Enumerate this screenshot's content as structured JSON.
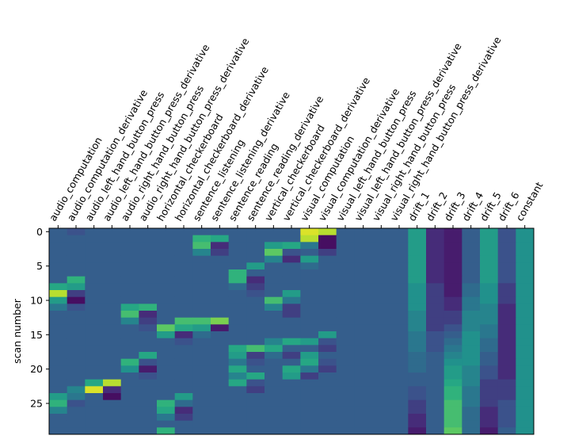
{
  "chart_data": {
    "type": "heatmap",
    "title": "",
    "ylabel": "scan number",
    "xlabel": "",
    "colormap": "viridis",
    "n_rows": 30,
    "columns": [
      "audio_computation",
      "audio_computation_derivative",
      "audio_left_hand_button_press",
      "audio_left_hand_button_press_derivative",
      "audio_right_hand_button_press",
      "audio_right_hand_button_press_derivative",
      "horizontal_checkerboard",
      "horizontal_checkerboard_derivative",
      "sentence_listening",
      "sentence_listening_derivative",
      "sentence_reading",
      "sentence_reading_derivative",
      "vertical_checkerboard",
      "vertical_checkerboard_derivative",
      "visual_computation",
      "visual_computation_derivative",
      "visual_left_hand_button_press",
      "visual_left_hand_button_press_derivative",
      "visual_right_hand_button_press",
      "visual_right_hand_button_press_derivative",
      "drift_1",
      "drift_2",
      "drift_3",
      "drift_4",
      "drift_5",
      "drift_6",
      "constant"
    ],
    "y_ticks": [
      0,
      5,
      10,
      15,
      20,
      25
    ],
    "ylim": [
      29.5,
      -0.5
    ],
    "grid": false,
    "legend": "none",
    "values": [
      [
        0.3,
        0.25,
        0.3,
        0.3,
        0.3,
        0.3,
        0.3,
        0.3,
        0.3,
        0.3,
        0.3,
        0.3,
        0.3,
        0.3,
        0.95,
        0.9,
        0.3,
        0.3,
        0.3,
        0.3,
        0.55,
        0.15,
        0.1,
        0.3,
        0.55,
        0.25,
        0.5
      ],
      [
        0.3,
        0.3,
        0.3,
        0.3,
        0.3,
        0.3,
        0.3,
        0.3,
        0.65,
        0.6,
        0.3,
        0.3,
        0.3,
        0.3,
        0.9,
        0.05,
        0.3,
        0.3,
        0.3,
        0.3,
        0.55,
        0.15,
        0.1,
        0.3,
        0.55,
        0.25,
        0.5
      ],
      [
        0.3,
        0.3,
        0.3,
        0.3,
        0.3,
        0.3,
        0.3,
        0.3,
        0.7,
        0.15,
        0.3,
        0.3,
        0.55,
        0.6,
        0.4,
        0.05,
        0.3,
        0.3,
        0.3,
        0.3,
        0.55,
        0.15,
        0.1,
        0.3,
        0.55,
        0.25,
        0.5
      ],
      [
        0.3,
        0.3,
        0.3,
        0.3,
        0.3,
        0.3,
        0.3,
        0.3,
        0.45,
        0.2,
        0.3,
        0.3,
        0.75,
        0.25,
        0.3,
        0.2,
        0.3,
        0.3,
        0.3,
        0.3,
        0.55,
        0.15,
        0.1,
        0.3,
        0.55,
        0.25,
        0.5
      ],
      [
        0.3,
        0.3,
        0.3,
        0.3,
        0.3,
        0.3,
        0.3,
        0.3,
        0.3,
        0.3,
        0.3,
        0.3,
        0.45,
        0.15,
        0.55,
        0.3,
        0.3,
        0.3,
        0.3,
        0.3,
        0.55,
        0.15,
        0.1,
        0.3,
        0.55,
        0.25,
        0.5
      ],
      [
        0.3,
        0.3,
        0.3,
        0.3,
        0.3,
        0.3,
        0.3,
        0.3,
        0.3,
        0.3,
        0.3,
        0.55,
        0.3,
        0.3,
        0.35,
        0.3,
        0.3,
        0.3,
        0.3,
        0.3,
        0.55,
        0.15,
        0.1,
        0.3,
        0.55,
        0.25,
        0.5
      ],
      [
        0.3,
        0.3,
        0.3,
        0.3,
        0.3,
        0.3,
        0.3,
        0.3,
        0.3,
        0.3,
        0.65,
        0.3,
        0.3,
        0.3,
        0.3,
        0.3,
        0.3,
        0.3,
        0.3,
        0.3,
        0.55,
        0.15,
        0.1,
        0.3,
        0.55,
        0.25,
        0.5
      ],
      [
        0.3,
        0.65,
        0.3,
        0.3,
        0.3,
        0.3,
        0.3,
        0.3,
        0.3,
        0.3,
        0.65,
        0.15,
        0.3,
        0.3,
        0.3,
        0.3,
        0.3,
        0.3,
        0.3,
        0.3,
        0.55,
        0.15,
        0.1,
        0.3,
        0.55,
        0.25,
        0.5
      ],
      [
        0.6,
        0.55,
        0.3,
        0.3,
        0.3,
        0.3,
        0.3,
        0.3,
        0.3,
        0.3,
        0.35,
        0.2,
        0.3,
        0.3,
        0.3,
        0.3,
        0.3,
        0.3,
        0.3,
        0.3,
        0.5,
        0.2,
        0.1,
        0.35,
        0.5,
        0.2,
        0.5
      ],
      [
        0.9,
        0.2,
        0.3,
        0.3,
        0.3,
        0.3,
        0.3,
        0.3,
        0.3,
        0.3,
        0.3,
        0.25,
        0.3,
        0.55,
        0.3,
        0.3,
        0.3,
        0.3,
        0.3,
        0.3,
        0.5,
        0.2,
        0.1,
        0.35,
        0.5,
        0.2,
        0.5
      ],
      [
        0.55,
        0.05,
        0.3,
        0.3,
        0.3,
        0.3,
        0.3,
        0.3,
        0.3,
        0.3,
        0.3,
        0.3,
        0.7,
        0.4,
        0.3,
        0.3,
        0.3,
        0.3,
        0.3,
        0.3,
        0.5,
        0.2,
        0.15,
        0.4,
        0.5,
        0.2,
        0.5
      ],
      [
        0.4,
        0.25,
        0.3,
        0.3,
        0.6,
        0.65,
        0.3,
        0.3,
        0.3,
        0.3,
        0.3,
        0.3,
        0.45,
        0.2,
        0.3,
        0.3,
        0.3,
        0.3,
        0.3,
        0.3,
        0.5,
        0.2,
        0.15,
        0.4,
        0.45,
        0.15,
        0.5
      ],
      [
        0.3,
        0.3,
        0.3,
        0.3,
        0.7,
        0.15,
        0.3,
        0.3,
        0.3,
        0.3,
        0.3,
        0.3,
        0.3,
        0.2,
        0.3,
        0.3,
        0.3,
        0.3,
        0.3,
        0.3,
        0.45,
        0.2,
        0.2,
        0.45,
        0.45,
        0.15,
        0.5
      ],
      [
        0.3,
        0.3,
        0.3,
        0.3,
        0.45,
        0.2,
        0.3,
        0.7,
        0.7,
        0.8,
        0.3,
        0.3,
        0.3,
        0.3,
        0.3,
        0.3,
        0.3,
        0.3,
        0.3,
        0.3,
        0.45,
        0.2,
        0.2,
        0.45,
        0.45,
        0.15,
        0.5
      ],
      [
        0.3,
        0.3,
        0.3,
        0.3,
        0.3,
        0.25,
        0.75,
        0.6,
        0.55,
        0.1,
        0.3,
        0.3,
        0.3,
        0.3,
        0.3,
        0.3,
        0.3,
        0.3,
        0.3,
        0.3,
        0.45,
        0.2,
        0.25,
        0.45,
        0.4,
        0.15,
        0.5
      ],
      [
        0.3,
        0.3,
        0.3,
        0.3,
        0.3,
        0.3,
        0.55,
        0.15,
        0.35,
        0.3,
        0.3,
        0.3,
        0.3,
        0.3,
        0.3,
        0.55,
        0.3,
        0.3,
        0.3,
        0.3,
        0.4,
        0.25,
        0.3,
        0.5,
        0.4,
        0.15,
        0.5
      ],
      [
        0.3,
        0.3,
        0.3,
        0.3,
        0.3,
        0.3,
        0.3,
        0.25,
        0.3,
        0.3,
        0.3,
        0.3,
        0.45,
        0.6,
        0.55,
        0.25,
        0.3,
        0.3,
        0.3,
        0.3,
        0.4,
        0.25,
        0.35,
        0.5,
        0.35,
        0.15,
        0.5
      ],
      [
        0.3,
        0.3,
        0.3,
        0.3,
        0.3,
        0.3,
        0.3,
        0.3,
        0.3,
        0.3,
        0.6,
        0.7,
        0.6,
        0.3,
        0.3,
        0.2,
        0.3,
        0.3,
        0.3,
        0.3,
        0.4,
        0.25,
        0.4,
        0.5,
        0.35,
        0.15,
        0.5
      ],
      [
        0.3,
        0.3,
        0.3,
        0.3,
        0.3,
        0.6,
        0.3,
        0.3,
        0.3,
        0.3,
        0.55,
        0.2,
        0.35,
        0.2,
        0.55,
        0.3,
        0.3,
        0.3,
        0.3,
        0.3,
        0.35,
        0.3,
        0.45,
        0.5,
        0.3,
        0.15,
        0.5
      ],
      [
        0.3,
        0.3,
        0.3,
        0.3,
        0.65,
        0.25,
        0.3,
        0.3,
        0.3,
        0.3,
        0.4,
        0.25,
        0.3,
        0.3,
        0.6,
        0.25,
        0.3,
        0.3,
        0.3,
        0.3,
        0.35,
        0.3,
        0.5,
        0.5,
        0.3,
        0.15,
        0.5
      ],
      [
        0.3,
        0.3,
        0.3,
        0.3,
        0.5,
        0.1,
        0.3,
        0.3,
        0.3,
        0.3,
        0.6,
        0.3,
        0.3,
        0.6,
        0.4,
        0.2,
        0.3,
        0.3,
        0.3,
        0.3,
        0.35,
        0.3,
        0.55,
        0.45,
        0.25,
        0.15,
        0.5
      ],
      [
        0.3,
        0.3,
        0.3,
        0.3,
        0.3,
        0.25,
        0.3,
        0.3,
        0.3,
        0.3,
        0.45,
        0.6,
        0.3,
        0.55,
        0.2,
        0.3,
        0.3,
        0.3,
        0.3,
        0.3,
        0.3,
        0.3,
        0.55,
        0.45,
        0.25,
        0.15,
        0.5
      ],
      [
        0.3,
        0.3,
        0.6,
        0.9,
        0.3,
        0.3,
        0.3,
        0.3,
        0.3,
        0.3,
        0.6,
        0.25,
        0.3,
        0.3,
        0.3,
        0.3,
        0.3,
        0.3,
        0.3,
        0.3,
        0.3,
        0.3,
        0.6,
        0.45,
        0.2,
        0.2,
        0.5
      ],
      [
        0.3,
        0.45,
        0.95,
        0.15,
        0.3,
        0.3,
        0.3,
        0.3,
        0.3,
        0.3,
        0.3,
        0.2,
        0.3,
        0.3,
        0.3,
        0.3,
        0.3,
        0.3,
        0.3,
        0.3,
        0.25,
        0.3,
        0.65,
        0.4,
        0.2,
        0.2,
        0.5
      ],
      [
        0.55,
        0.4,
        0.3,
        0.05,
        0.3,
        0.3,
        0.3,
        0.55,
        0.3,
        0.3,
        0.3,
        0.3,
        0.3,
        0.3,
        0.3,
        0.3,
        0.3,
        0.3,
        0.3,
        0.3,
        0.25,
        0.3,
        0.65,
        0.4,
        0.2,
        0.2,
        0.5
      ],
      [
        0.65,
        0.25,
        0.3,
        0.3,
        0.3,
        0.3,
        0.65,
        0.35,
        0.3,
        0.3,
        0.3,
        0.3,
        0.3,
        0.3,
        0.3,
        0.3,
        0.3,
        0.3,
        0.3,
        0.3,
        0.2,
        0.3,
        0.7,
        0.4,
        0.2,
        0.25,
        0.5
      ],
      [
        0.45,
        0.3,
        0.3,
        0.3,
        0.3,
        0.3,
        0.6,
        0.15,
        0.3,
        0.3,
        0.3,
        0.3,
        0.3,
        0.3,
        0.3,
        0.3,
        0.3,
        0.3,
        0.3,
        0.3,
        0.2,
        0.3,
        0.7,
        0.35,
        0.15,
        0.25,
        0.5
      ],
      [
        0.3,
        0.3,
        0.3,
        0.3,
        0.3,
        0.3,
        0.4,
        0.2,
        0.3,
        0.3,
        0.3,
        0.3,
        0.3,
        0.3,
        0.3,
        0.3,
        0.3,
        0.3,
        0.3,
        0.3,
        0.15,
        0.3,
        0.7,
        0.35,
        0.15,
        0.25,
        0.5
      ],
      [
        0.3,
        0.3,
        0.3,
        0.3,
        0.3,
        0.3,
        0.3,
        0.3,
        0.3,
        0.3,
        0.3,
        0.3,
        0.3,
        0.3,
        0.3,
        0.3,
        0.3,
        0.3,
        0.3,
        0.3,
        0.15,
        0.3,
        0.7,
        0.35,
        0.15,
        0.25,
        0.5
      ],
      [
        0.3,
        0.3,
        0.3,
        0.3,
        0.3,
        0.3,
        0.65,
        0.3,
        0.3,
        0.3,
        0.3,
        0.3,
        0.3,
        0.3,
        0.3,
        0.3,
        0.3,
        0.3,
        0.3,
        0.3,
        0.1,
        0.3,
        0.75,
        0.35,
        0.1,
        0.3,
        0.5
      ]
    ]
  }
}
